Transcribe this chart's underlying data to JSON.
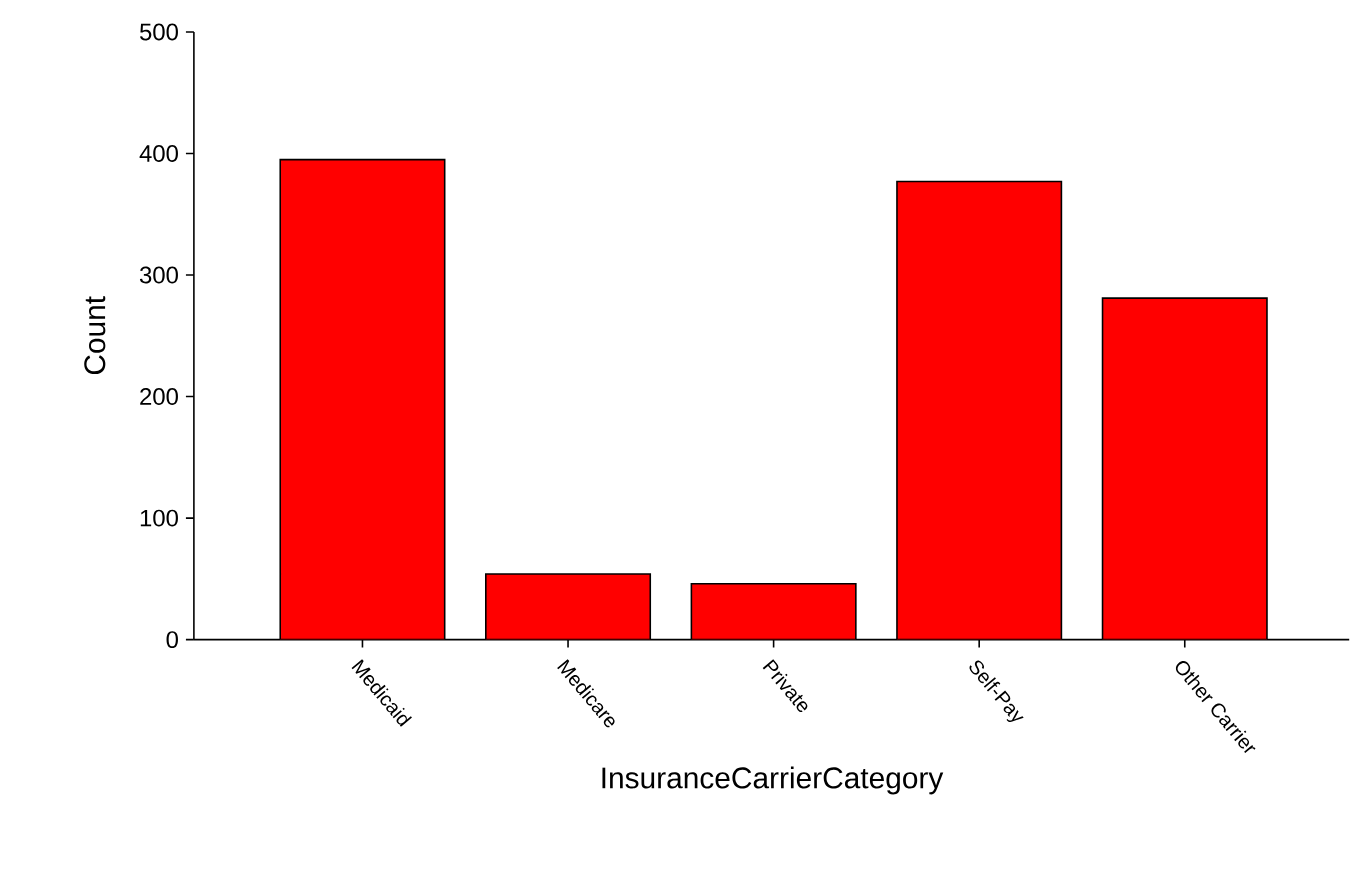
{
  "chart_data": {
    "type": "bar",
    "xlabel": "InsuranceCarrierCategory",
    "ylabel": "Count",
    "categories": [
      "Medicaid",
      "Medicare",
      "Private",
      "Self-Pay",
      "Other Carrier"
    ],
    "values": [
      395,
      54,
      46,
      377,
      281
    ],
    "color": "#ff0000",
    "ylim": [
      0,
      500
    ],
    "yticks": [
      0,
      100,
      200,
      300,
      400,
      500
    ]
  }
}
